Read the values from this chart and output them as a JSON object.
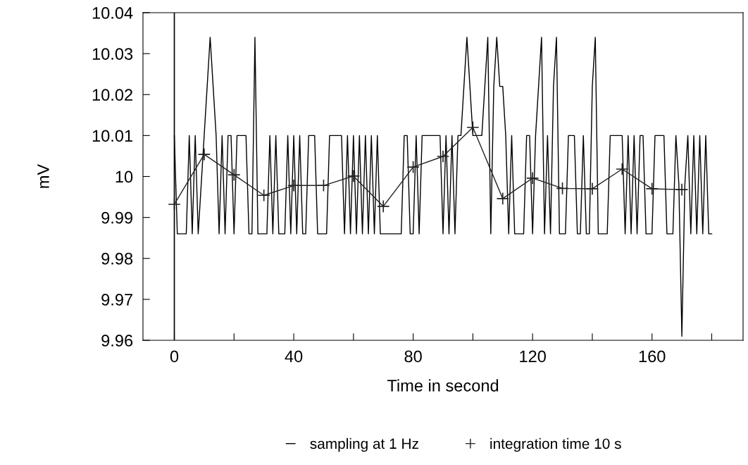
{
  "chart_data": {
    "type": "line",
    "xlabel": "Time in second",
    "ylabel": "mV",
    "xlim": [
      -10.5,
      190.5
    ],
    "ylim": [
      9.96,
      10.04
    ],
    "xticks": [
      0,
      {
        "value": 20,
        "label": null
      },
      40,
      {
        "value": 60,
        "label": null
      },
      80,
      {
        "value": 100,
        "label": null
      },
      120,
      {
        "value": 140,
        "label": null
      },
      160,
      {
        "value": 180,
        "label": null
      }
    ],
    "yticks": [
      9.96,
      9.97,
      9.98,
      9.99,
      10,
      10.01,
      10.02,
      10.03,
      10.04
    ],
    "grid": false,
    "legend": "bottom",
    "ref_lines": [
      {
        "axis": "x",
        "value": 0,
        "color": "#000000"
      }
    ],
    "series": [
      {
        "name": "sampling at 1 Hz",
        "color": "#000000",
        "marker": "none",
        "x": [
          0,
          1,
          2,
          3,
          4,
          5,
          6,
          7,
          8,
          9,
          10,
          11,
          12,
          13,
          14,
          15,
          16,
          17,
          18,
          19,
          20,
          21,
          22,
          23,
          24,
          25,
          26,
          27,
          28,
          29,
          30,
          31,
          32,
          33,
          34,
          35,
          36,
          37,
          38,
          39,
          40,
          41,
          42,
          43,
          44,
          45,
          46,
          47,
          48,
          49,
          50,
          51,
          52,
          53,
          54,
          55,
          56,
          57,
          58,
          59,
          60,
          61,
          62,
          63,
          64,
          65,
          66,
          67,
          68,
          69,
          70,
          71,
          72,
          73,
          74,
          75,
          76,
          77,
          78,
          79,
          80,
          81,
          82,
          83,
          84,
          85,
          86,
          87,
          88,
          89,
          90,
          91,
          92,
          93,
          94,
          95,
          96,
          97,
          98,
          99,
          100,
          101,
          102,
          103,
          104,
          105,
          106,
          107,
          108,
          109,
          110,
          111,
          112,
          113,
          114,
          115,
          116,
          117,
          118,
          119,
          120,
          121,
          122,
          123,
          124,
          125,
          126,
          127,
          128,
          129,
          130,
          131,
          132,
          133,
          134,
          135,
          136,
          137,
          138,
          139,
          140,
          141,
          142,
          143,
          144,
          145,
          146,
          147,
          148,
          149,
          150,
          151,
          152,
          153,
          154,
          155,
          156,
          157,
          158,
          159,
          160,
          161,
          162,
          163,
          164,
          165,
          166,
          167,
          168,
          169,
          170,
          171,
          172,
          173,
          174,
          175,
          176,
          177,
          178,
          179,
          180
        ],
        "values": [
          10.01,
          9.986,
          9.986,
          9.986,
          9.986,
          10.01,
          9.986,
          10.01,
          9.986,
          9.998,
          10.01,
          10.022,
          10.034,
          10.022,
          10.01,
          9.986,
          10.01,
          9.986,
          10.01,
          10.01,
          9.986,
          10.01,
          10.01,
          10.01,
          10.01,
          9.986,
          9.986,
          10.034,
          9.986,
          9.986,
          9.986,
          9.986,
          10.01,
          9.986,
          10.01,
          9.986,
          9.986,
          9.986,
          10.01,
          9.986,
          10.01,
          9.986,
          10.01,
          9.986,
          9.986,
          10.01,
          10.01,
          10.01,
          9.986,
          9.986,
          9.986,
          9.986,
          10.01,
          10.01,
          10.01,
          10.01,
          10.01,
          9.986,
          10.01,
          9.986,
          10.01,
          9.986,
          10.01,
          9.986,
          10.01,
          9.986,
          10.01,
          9.986,
          10.01,
          9.986,
          9.986,
          9.986,
          9.986,
          9.986,
          9.986,
          9.986,
          9.986,
          10.01,
          10.01,
          9.986,
          9.986,
          10.01,
          9.986,
          10.01,
          10.01,
          10.01,
          10.01,
          10.01,
          10.01,
          10.01,
          9.986,
          10.01,
          9.986,
          10.01,
          9.986,
          10.01,
          10.01,
          10.022,
          10.034,
          10.022,
          10.01,
          10.01,
          10.01,
          10.01,
          10.022,
          10.034,
          9.986,
          10.022,
          10.034,
          10.022,
          10.022,
          10.01,
          9.986,
          10.01,
          9.986,
          9.986,
          9.986,
          9.986,
          10.01,
          10.01,
          9.986,
          10.01,
          10.022,
          10.034,
          9.986,
          10.01,
          9.986,
          10.022,
          10.034,
          9.986,
          9.986,
          9.986,
          10.01,
          10.01,
          10.01,
          9.986,
          9.986,
          10.01,
          9.986,
          9.986,
          10.022,
          10.034,
          9.986,
          9.986,
          9.986,
          9.986,
          10.01,
          10.01,
          10.01,
          10.01,
          10.01,
          9.986,
          10.01,
          9.986,
          10.01,
          9.986,
          10.01,
          10.01,
          9.986,
          9.986,
          9.986,
          10.01,
          10.01,
          10.01,
          10.01,
          9.986,
          9.986,
          9.986,
          10.01,
          9.998,
          9.961,
          9.998,
          10.01,
          9.986,
          10.01,
          9.986,
          10.01,
          9.986,
          10.01,
          9.986,
          9.986
        ]
      },
      {
        "name": "integration time 10 s",
        "color": "#222222",
        "marker": "cross",
        "x": [
          0,
          10,
          20,
          30,
          40,
          50,
          60,
          70,
          80,
          90,
          100,
          110,
          120,
          130,
          140,
          150,
          160,
          170
        ],
        "values": [
          9.9932,
          10.0054,
          10.0004,
          9.9954,
          9.9978,
          9.9978,
          10.0001,
          9.9927,
          10.0023,
          10.0049,
          10.012,
          9.9946,
          9.9996,
          9.9971,
          9.997,
          10.0018,
          9.997,
          9.9968
        ]
      }
    ]
  }
}
